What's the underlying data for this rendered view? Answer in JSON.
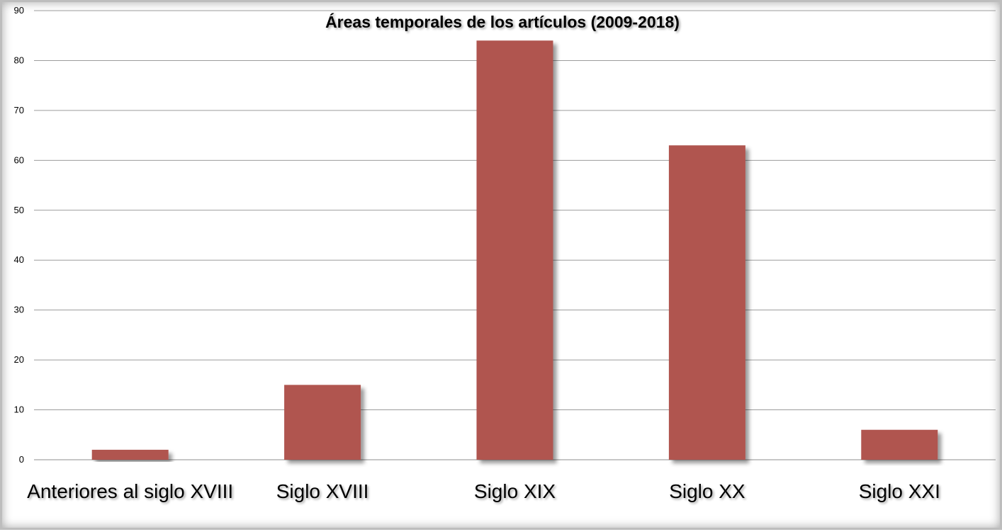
{
  "chart_data": {
    "type": "bar",
    "title": "Áreas temporales de los artículos (2009-2018)",
    "xlabel": "",
    "ylabel": "",
    "categories": [
      "Anteriores al siglo XVIII",
      "Siglo XVIII",
      "Siglo XIX",
      "Siglo XX",
      "Siglo XXI"
    ],
    "values": [
      2,
      15,
      84,
      63,
      6
    ],
    "ylim": [
      0,
      90
    ],
    "yticks": [
      "0",
      "10",
      "20",
      "30",
      "40",
      "50",
      "60",
      "70",
      "80",
      "90"
    ],
    "grid": true,
    "legend": "none",
    "bar_color": "#b05550"
  }
}
